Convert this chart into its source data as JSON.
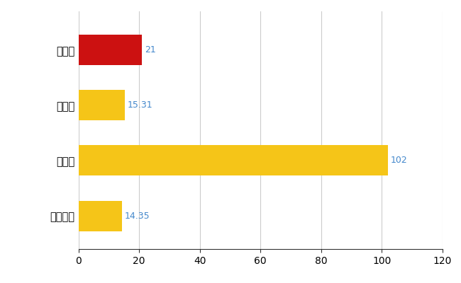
{
  "categories": [
    "磤田市",
    "県平均",
    "県最大",
    "全国平均"
  ],
  "values": [
    21,
    15.31,
    102,
    14.35
  ],
  "bar_colors": [
    "#cc1111",
    "#f5c518",
    "#f5c518",
    "#f5c518"
  ],
  "value_labels": [
    "21",
    "15.31",
    "102",
    "14.35"
  ],
  "value_color": "#4488cc",
  "xlim": [
    0,
    120
  ],
  "xticks": [
    0,
    20,
    40,
    60,
    80,
    100,
    120
  ],
  "grid_color": "#cccccc",
  "background_color": "#ffffff",
  "bar_height": 0.55,
  "label_fontsize": 10.5,
  "tick_fontsize": 10,
  "value_fontsize": 9
}
